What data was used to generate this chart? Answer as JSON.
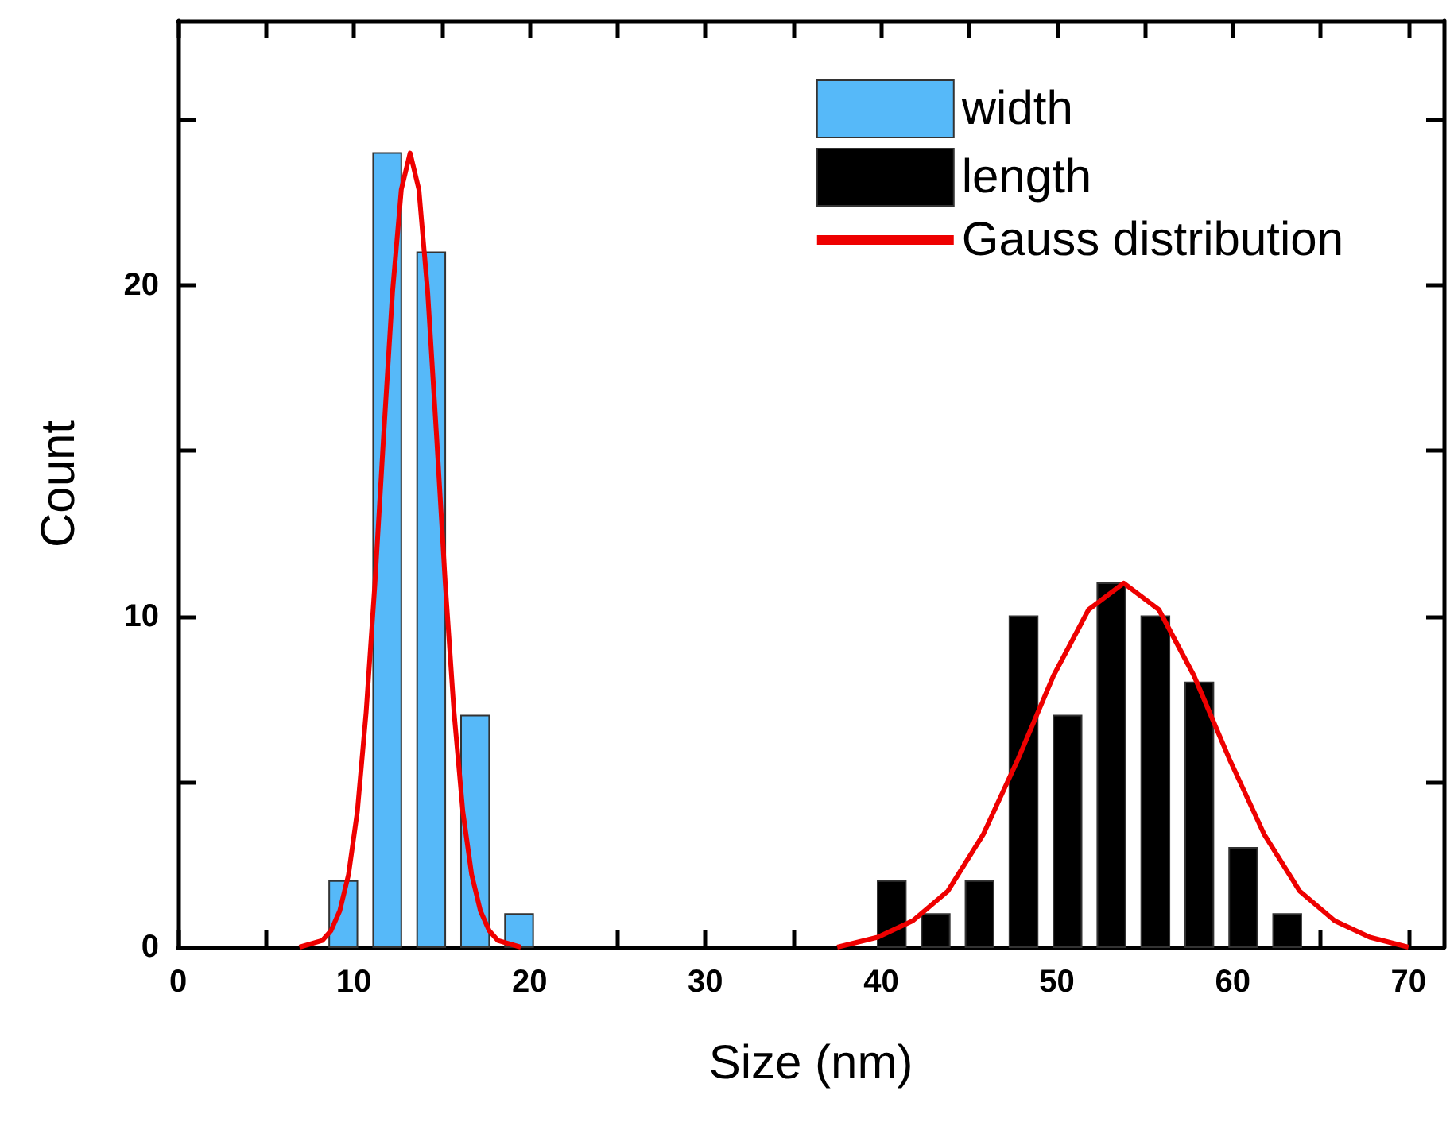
{
  "chart_data": {
    "type": "histogram",
    "xlabel": "Size (nm)",
    "ylabel": "Count",
    "xlim": [
      0,
      72
    ],
    "xticks": [
      0,
      {
        "value": 5,
        "label": null
      },
      10,
      {
        "value": 15,
        "label": null
      },
      20,
      {
        "value": 25,
        "label": null
      },
      30,
      {
        "value": 35,
        "label": null
      },
      40,
      {
        "value": 45,
        "label": null
      },
      50,
      {
        "value": 55,
        "label": null
      },
      60,
      {
        "value": 65,
        "label": null
      },
      70
    ],
    "ylim": [
      0,
      28
    ],
    "yticks": [
      0,
      {
        "value": 5,
        "label": null
      },
      10,
      {
        "value": 15,
        "label": null
      },
      20,
      {
        "value": 25,
        "label": null
      }
    ],
    "grid": false,
    "legend": "top right",
    "series": [
      {
        "name": "width",
        "color": "#56b9f9",
        "bins": [
          8.15,
          10.65,
          13.15,
          15.65,
          18.15,
          20.65
        ],
        "values": [
          2,
          24,
          21,
          7,
          1
        ]
      },
      {
        "name": "length",
        "color": "#000000",
        "bins": [
          39.35,
          41.85,
          44.35,
          46.85,
          49.35,
          51.85,
          54.35,
          56.85,
          59.35,
          61.85,
          64.35
        ],
        "values": [
          2,
          1,
          2,
          10,
          7,
          11,
          10,
          8,
          3,
          1
        ]
      },
      {
        "name": "Gauss distribution",
        "type": "line",
        "color": "#ee0000",
        "x": [
          6.9,
          8.2,
          8.7,
          9.2,
          9.7,
          10.2,
          10.7,
          11.2,
          11.7,
          12.2,
          12.7,
          13.2,
          13.7,
          14.2,
          14.7,
          15.2,
          15.7,
          16.2,
          16.7,
          17.2,
          17.7,
          18.2,
          19.5
        ],
        "values": [
          0,
          0.2,
          0.5,
          1.1,
          2.2,
          4.1,
          7.1,
          11,
          15.5,
          19.8,
          22.9,
          24,
          22.9,
          19.8,
          15.5,
          11,
          7.1,
          4.1,
          2.2,
          1.1,
          0.5,
          0.2,
          0
        ]
      },
      {
        "type": "line",
        "color": "#ee0000",
        "x": [
          37.5,
          39.8,
          41.8,
          43.8,
          45.8,
          47.8,
          49.8,
          51.8,
          53.8,
          55.8,
          57.8,
          59.8,
          61.8,
          63.8,
          65.8,
          67.8,
          70
        ],
        "values": [
          0,
          0.3,
          0.8,
          1.7,
          3.4,
          5.7,
          8.2,
          10.2,
          11,
          10.2,
          8.2,
          5.7,
          3.4,
          1.7,
          0.8,
          0.3,
          0
        ]
      }
    ]
  }
}
